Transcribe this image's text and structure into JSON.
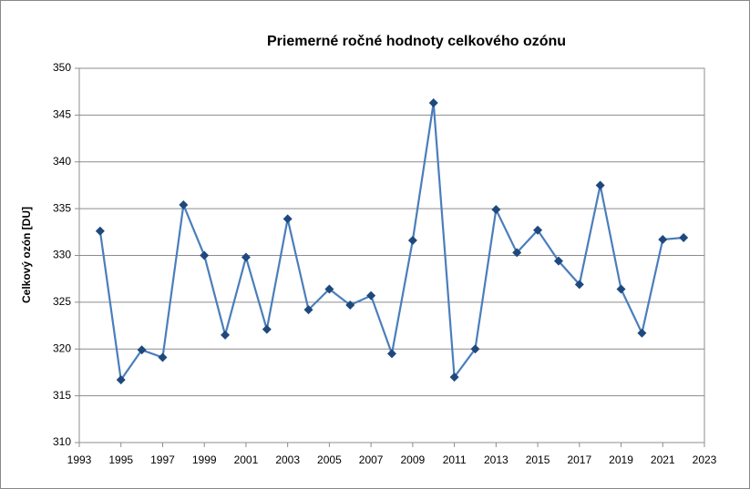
{
  "chart_data": {
    "type": "line",
    "title": "Priemerné ročné hodnoty celkového ozónu",
    "y_label": "Celkový ozón [DU]",
    "x": [
      1994,
      1995,
      1996,
      1997,
      1998,
      1999,
      2000,
      2001,
      2002,
      2003,
      2004,
      2005,
      2006,
      2007,
      2008,
      2009,
      2010,
      2011,
      2012,
      2013,
      2014,
      2015,
      2016,
      2017,
      2018,
      2019,
      2020,
      2021,
      2022
    ],
    "series": [
      {
        "color": "#4a7ebb",
        "marker_color": "#1f497d",
        "values": [
          332.6,
          316.7,
          319.9,
          319.1,
          335.4,
          330.0,
          321.5,
          329.8,
          322.1,
          333.9,
          324.2,
          326.4,
          324.7,
          325.7,
          319.5,
          331.6,
          346.3,
          317.0,
          320.0,
          334.9,
          330.3,
          332.7,
          329.4,
          326.9,
          337.5,
          326.4,
          321.7,
          331.7,
          331.9
        ]
      }
    ],
    "xlim": [
      1993,
      2023
    ],
    "xticks": [
      1993,
      1995,
      1997,
      1999,
      2001,
      2003,
      2005,
      2007,
      2009,
      2011,
      2013,
      2015,
      2017,
      2019,
      2021,
      2023
    ],
    "ylim": [
      310,
      350
    ],
    "yticks": [
      310,
      315,
      320,
      325,
      330,
      335,
      340,
      345,
      350
    ],
    "grid": true
  }
}
